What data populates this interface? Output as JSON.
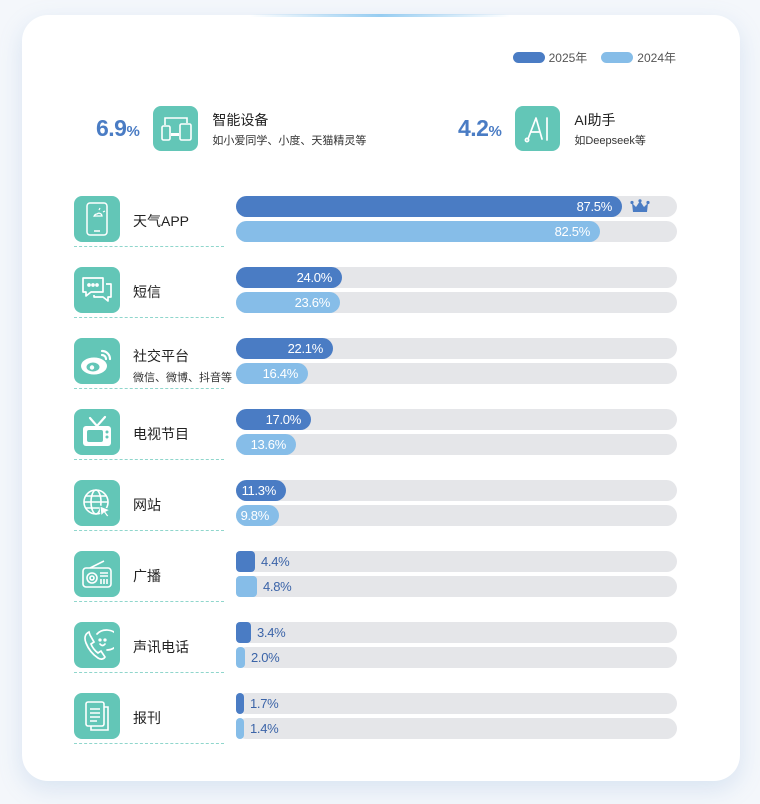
{
  "colors": {
    "y2025": "#4a7cc4",
    "y2024": "#86bde8",
    "track": "#e5e6e9",
    "icon_bg": "#63c6b7"
  },
  "legend": [
    {
      "label": "2025年",
      "color": "#4a7cc4"
    },
    {
      "label": "2024年",
      "color": "#86bde8"
    }
  ],
  "stats": [
    {
      "value": "6.9",
      "unit": "%",
      "icon": "smart-devices-icon",
      "title": "智能设备",
      "subtitle": "如小爱同学、小度、天猫精灵等"
    },
    {
      "value": "4.2",
      "unit": "%",
      "icon": "ai-icon",
      "title": "AI助手",
      "subtitle": "如Deepseek等"
    }
  ],
  "rows": [
    {
      "icon": "weather-phone-icon",
      "label": "天气APP",
      "sub": "",
      "v2025": 87.5,
      "v2024": 82.5,
      "t2025": "87.5%",
      "t2024": "82.5%",
      "top": true
    },
    {
      "icon": "message-icon",
      "label": "短信",
      "sub": "",
      "v2025": 24.0,
      "v2024": 23.6,
      "t2025": "24.0%",
      "t2024": "23.6%"
    },
    {
      "icon": "weibo-icon",
      "label": "社交平台",
      "sub": "微信、微博、抖音等",
      "v2025": 22.1,
      "v2024": 16.4,
      "t2025": "22.1%",
      "t2024": "16.4%"
    },
    {
      "icon": "tv-icon",
      "label": "电视节目",
      "sub": "",
      "v2025": 17.0,
      "v2024": 13.6,
      "t2025": "17.0%",
      "t2024": "13.6%"
    },
    {
      "icon": "globe-icon",
      "label": "网站",
      "sub": "",
      "v2025": 11.3,
      "v2024": 9.8,
      "t2025": "11.3%",
      "t2024": "9.8%"
    },
    {
      "icon": "radio-icon",
      "label": "广播",
      "sub": "",
      "v2025": 4.4,
      "v2024": 4.8,
      "t2025": "4.4%",
      "t2024": "4.8%"
    },
    {
      "icon": "phone-call-icon",
      "label": "声讯电话",
      "sub": "",
      "v2025": 3.4,
      "v2024": 2.0,
      "t2025": "3.4%",
      "t2024": "2.0%"
    },
    {
      "icon": "newspaper-icon",
      "label": "报刊",
      "sub": "",
      "v2025": 1.7,
      "v2024": 1.4,
      "t2025": "1.7%",
      "t2024": "1.4%"
    }
  ],
  "chart_data": {
    "type": "bar",
    "orientation": "horizontal",
    "title": "",
    "categories": [
      "天气APP",
      "短信",
      "社交平台",
      "电视节目",
      "网站",
      "广播",
      "声讯电话",
      "报刊"
    ],
    "series": [
      {
        "name": "2025年",
        "values": [
          87.5,
          24.0,
          22.1,
          17.0,
          11.3,
          4.4,
          3.4,
          1.7
        ]
      },
      {
        "name": "2024年",
        "values": [
          82.5,
          23.6,
          16.4,
          13.6,
          9.8,
          4.8,
          2.0,
          1.4
        ]
      }
    ],
    "unit": "%",
    "xlim": [
      0,
      100
    ],
    "legend_position": "top-right",
    "grid": false,
    "annotations": [
      {
        "label": "智能设备",
        "subtitle": "如小爱同学、小度、天猫精灵等",
        "value": 6.9
      },
      {
        "label": "AI助手",
        "subtitle": "如Deepseek等",
        "value": 4.2
      },
      {
        "label": "crown",
        "target": "天气APP 2025年"
      }
    ]
  }
}
